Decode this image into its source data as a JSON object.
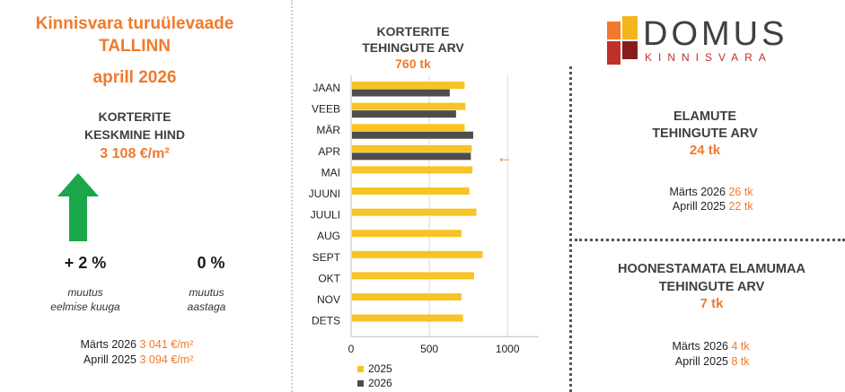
{
  "header": {
    "title_line1": "Kinnisvara turuülevaade",
    "title_line2": "TALLINN",
    "title_line3": "aprill 2026"
  },
  "price": {
    "label_line1": "KORTERITE",
    "label_line2": "KESKMINE HIND",
    "value": "3 108 €/m²",
    "change_month": "+ 2 %",
    "change_month_caption1": "muutus",
    "change_month_caption2": "eelmise kuuga",
    "change_year": "0 %",
    "change_year_caption1": "muutus",
    "change_year_caption2": "aastaga",
    "arrow_icon": "up-arrow",
    "arrow_color": "#1aa64a",
    "compare": [
      {
        "label": "Märts 2026",
        "value": "3 041 €/m²"
      },
      {
        "label": "Aprill 2025",
        "value": "3 094 €/m²"
      }
    ]
  },
  "chart_header": {
    "line1": "KORTERITE",
    "line2": "TEHINGUTE ARV",
    "value": "760 tk"
  },
  "chart_data": {
    "type": "bar",
    "orientation": "horizontal",
    "categories": [
      "JAAN",
      "VEEB",
      "MÄR",
      "APR",
      "MAI",
      "JUUNI",
      "JUULI",
      "AUG",
      "SEPT",
      "OKT",
      "NOV",
      "DETS"
    ],
    "series": [
      {
        "name": "2025",
        "color": "#f7c325",
        "values": [
          720,
          725,
          720,
          765,
          770,
          750,
          795,
          700,
          835,
          780,
          700,
          710
        ]
      },
      {
        "name": "2026",
        "color": "#4d4d4d",
        "values": [
          625,
          665,
          775,
          760,
          null,
          null,
          null,
          null,
          null,
          null,
          null,
          null
        ]
      }
    ],
    "xlim": [
      0,
      1200
    ],
    "xticks": [
      "0",
      "500",
      "1000"
    ],
    "xtick_values": [
      0,
      500,
      1000
    ],
    "grid": true,
    "legend_position": "bottom-left",
    "marker_category": "APR",
    "marker_symbol": "←"
  },
  "logo": {
    "word": "DOMUS",
    "sub": "KINNISVARA",
    "colors": [
      "#f07a2a",
      "#f6b51d",
      "#c0302a",
      "#8a1b1b"
    ]
  },
  "houses": {
    "line1": "ELAMUTE",
    "line2": "TEHINGUTE ARV",
    "value": "24 tk",
    "compare": [
      {
        "label": "Märts 2026",
        "value": "26 tk"
      },
      {
        "label": "Aprill 2025",
        "value": "22 tk"
      }
    ]
  },
  "land": {
    "line1": "HOONESTAMATA ELAMUMAA",
    "line2": "TEHINGUTE ARV",
    "value": "7 tk",
    "compare": [
      {
        "label": "Märts 2026",
        "value": "4 tk"
      },
      {
        "label": "Aprill 2025",
        "value": "8 tk"
      }
    ]
  }
}
